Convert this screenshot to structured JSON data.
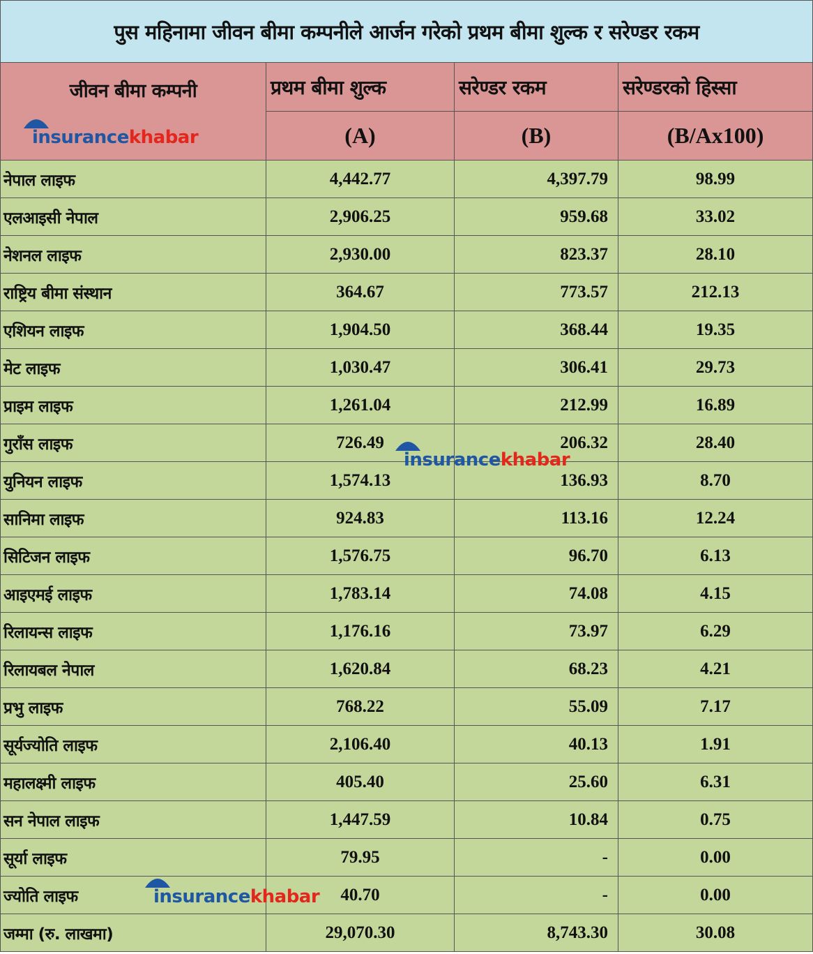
{
  "title": "पुस महिनामा जीवन बीमा कम्पनीले आर्जन गरेको प्रथम बीमा शुल्क र सरेण्डर रकम",
  "columns": {
    "company": "जीवन बीमा कम्पनी",
    "premium": "प्रथम बीमा शुल्क",
    "premium_sub": "(A)",
    "surrender": "सरेण्डर रकम",
    "surrender_sub": "(B)",
    "share": "सरेण्डरको हिस्सा",
    "share_sub": "(B/Ax100)"
  },
  "logo": {
    "part1": "insurance",
    "part2": "khabar"
  },
  "rows": [
    {
      "company": "नेपाल लाइफ",
      "premium": "4,442.77",
      "surrender": "4,397.79",
      "share": "98.99"
    },
    {
      "company": "एलआइसी नेपाल",
      "premium": "2,906.25",
      "surrender": "959.68",
      "share": "33.02"
    },
    {
      "company": "नेशनल लाइफ",
      "premium": "2,930.00",
      "surrender": "823.37",
      "share": "28.10"
    },
    {
      "company": "राष्ट्रिय बीमा संस्थान",
      "premium": "364.67",
      "surrender": "773.57",
      "share": "212.13"
    },
    {
      "company": "एशियन लाइफ",
      "premium": "1,904.50",
      "surrender": "368.44",
      "share": "19.35"
    },
    {
      "company": "मेट लाइफ",
      "premium": "1,030.47",
      "surrender": "306.41",
      "share": "29.73"
    },
    {
      "company": "प्राइम लाइफ",
      "premium": "1,261.04",
      "surrender": "212.99",
      "share": "16.89"
    },
    {
      "company": "गुराँस लाइफ",
      "premium": "726.49",
      "surrender": "206.32",
      "share": "28.40"
    },
    {
      "company": "युनियन लाइफ",
      "premium": "1,574.13",
      "surrender": "136.93",
      "share": "8.70"
    },
    {
      "company": "सानिमा लाइफ",
      "premium": "924.83",
      "surrender": "113.16",
      "share": "12.24"
    },
    {
      "company": "सिटिजन लाइफ",
      "premium": "1,576.75",
      "surrender": "96.70",
      "share": "6.13"
    },
    {
      "company": "आइएमई लाइफ",
      "premium": "1,783.14",
      "surrender": "74.08",
      "share": "4.15"
    },
    {
      "company": "रिलायन्स लाइफ",
      "premium": "1,176.16",
      "surrender": "73.97",
      "share": "6.29"
    },
    {
      "company": "रिलायबल नेपाल",
      "premium": "1,620.84",
      "surrender": "68.23",
      "share": "4.21"
    },
    {
      "company": "प्रभु लाइफ",
      "premium": "768.22",
      "surrender": "55.09",
      "share": "7.17"
    },
    {
      "company": "सूर्यज्योति लाइफ",
      "premium": "2,106.40",
      "surrender": "40.13",
      "share": "1.91"
    },
    {
      "company": "महालक्ष्मी लाइफ",
      "premium": "405.40",
      "surrender": "25.60",
      "share": "6.31"
    },
    {
      "company": "सन नेपाल लाइफ",
      "premium": "1,447.59",
      "surrender": "10.84",
      "share": "0.75"
    },
    {
      "company": "सूर्या लाइफ",
      "premium": "79.95",
      "surrender": "-",
      "share": "0.00"
    },
    {
      "company": "ज्योति लाइफ",
      "premium": "40.70",
      "surrender": "-",
      "share": "0.00"
    }
  ],
  "total": {
    "company": "जम्मा (रु. लाखमा)",
    "premium": "29,070.30",
    "surrender": "8,743.30",
    "share": "30.08"
  },
  "colors": {
    "title_bg": "#c3e5ef",
    "header_bg": "#d99694",
    "row_bg": "#c4d79b",
    "logo_blue": "#1f57a5",
    "logo_red": "#e3271d"
  }
}
